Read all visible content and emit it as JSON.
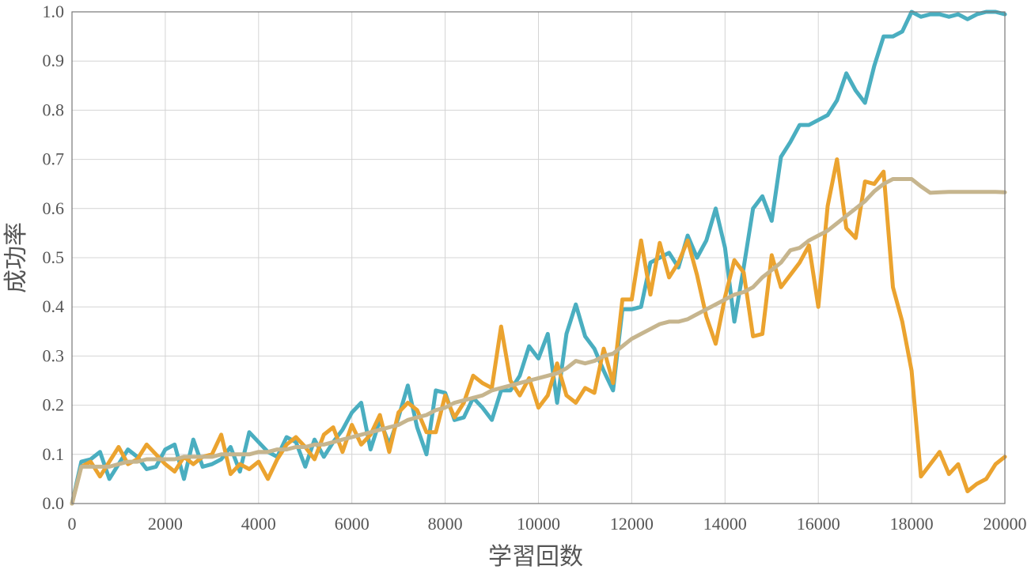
{
  "chart_data": {
    "type": "line",
    "xlabel": "学習回数",
    "ylabel": "成功率",
    "xlim": [
      0,
      20000
    ],
    "ylim": [
      0.0,
      1.0
    ],
    "grid": true,
    "x_ticks": [
      "0",
      "2000",
      "4000",
      "6000",
      "8000",
      "10000",
      "12000",
      "14000",
      "16000",
      "18000",
      "20000"
    ],
    "y_ticks": [
      "0.0",
      "0.1",
      "0.2",
      "0.3",
      "0.4",
      "0.5",
      "0.6",
      "0.7",
      "0.8",
      "0.9",
      "1.0"
    ],
    "x": [
      0,
      200,
      400,
      600,
      800,
      1000,
      1200,
      1400,
      1600,
      1800,
      2000,
      2200,
      2400,
      2600,
      2800,
      3000,
      3200,
      3400,
      3600,
      3800,
      4000,
      4200,
      4400,
      4600,
      4800,
      5000,
      5200,
      5400,
      5600,
      5800,
      6000,
      6200,
      6400,
      6600,
      6800,
      7000,
      7200,
      7400,
      7600,
      7800,
      8000,
      8200,
      8400,
      8600,
      8800,
      9000,
      9200,
      9400,
      9600,
      9800,
      10000,
      10200,
      10400,
      10600,
      10800,
      11000,
      11200,
      11400,
      11600,
      11800,
      12000,
      12200,
      12400,
      12600,
      12800,
      13000,
      13200,
      13400,
      13600,
      13800,
      14000,
      14200,
      14400,
      14600,
      14800,
      15000,
      15200,
      15400,
      15600,
      15800,
      16000,
      16200,
      16400,
      16600,
      16800,
      17000,
      17200,
      17400,
      17600,
      17800,
      18000,
      18200,
      18400,
      18600,
      18800,
      19000,
      19200,
      19400,
      19600,
      19800,
      20000
    ],
    "series": [
      {
        "color": "#4aaec0",
        "values": [
          0.0,
          0.085,
          0.09,
          0.105,
          0.05,
          0.08,
          0.11,
          0.095,
          0.07,
          0.075,
          0.11,
          0.12,
          0.05,
          0.13,
          0.075,
          0.08,
          0.09,
          0.115,
          0.065,
          0.145,
          0.125,
          0.105,
          0.095,
          0.135,
          0.125,
          0.075,
          0.13,
          0.095,
          0.125,
          0.15,
          0.185,
          0.205,
          0.11,
          0.17,
          0.12,
          0.175,
          0.24,
          0.155,
          0.1,
          0.23,
          0.225,
          0.17,
          0.175,
          0.215,
          0.195,
          0.17,
          0.23,
          0.23,
          0.26,
          0.32,
          0.295,
          0.345,
          0.205,
          0.345,
          0.405,
          0.34,
          0.315,
          0.27,
          0.23,
          0.395,
          0.395,
          0.4,
          0.49,
          0.5,
          0.51,
          0.48,
          0.545,
          0.5,
          0.535,
          0.6,
          0.52,
          0.37,
          0.48,
          0.6,
          0.625,
          0.575,
          0.705,
          0.735,
          0.77,
          0.77,
          0.78,
          0.79,
          0.82,
          0.875,
          0.84,
          0.815,
          0.89,
          0.95,
          0.95,
          0.96,
          1.0,
          0.99,
          0.995,
          0.995,
          0.99,
          0.995,
          0.985,
          0.995,
          1.0,
          1.0,
          0.995
        ]
      },
      {
        "color": "#eba32f",
        "values": [
          0.0,
          0.075,
          0.085,
          0.055,
          0.085,
          0.115,
          0.08,
          0.09,
          0.12,
          0.1,
          0.08,
          0.065,
          0.095,
          0.08,
          0.095,
          0.1,
          0.14,
          0.06,
          0.08,
          0.07,
          0.085,
          0.05,
          0.09,
          0.12,
          0.135,
          0.115,
          0.09,
          0.14,
          0.155,
          0.105,
          0.16,
          0.12,
          0.14,
          0.18,
          0.105,
          0.185,
          0.205,
          0.19,
          0.145,
          0.145,
          0.22,
          0.175,
          0.205,
          0.26,
          0.245,
          0.235,
          0.36,
          0.25,
          0.22,
          0.255,
          0.195,
          0.22,
          0.285,
          0.22,
          0.205,
          0.235,
          0.225,
          0.315,
          0.245,
          0.415,
          0.415,
          0.535,
          0.425,
          0.53,
          0.46,
          0.49,
          0.535,
          0.465,
          0.38,
          0.325,
          0.42,
          0.495,
          0.47,
          0.34,
          0.345,
          0.505,
          0.44,
          0.465,
          0.49,
          0.525,
          0.4,
          0.605,
          0.7,
          0.56,
          0.54,
          0.655,
          0.65,
          0.675,
          0.44,
          0.37,
          0.27,
          0.055,
          0.08,
          0.105,
          0.06,
          0.08,
          0.025,
          0.04,
          0.05,
          0.08,
          0.095
        ]
      },
      {
        "color": "#c6b58e",
        "values": [
          0.0,
          0.075,
          0.075,
          0.075,
          0.075,
          0.08,
          0.085,
          0.085,
          0.09,
          0.09,
          0.09,
          0.09,
          0.095,
          0.095,
          0.095,
          0.095,
          0.1,
          0.1,
          0.1,
          0.1,
          0.105,
          0.105,
          0.11,
          0.11,
          0.115,
          0.115,
          0.12,
          0.12,
          0.125,
          0.13,
          0.135,
          0.14,
          0.145,
          0.15,
          0.155,
          0.16,
          0.17,
          0.175,
          0.18,
          0.19,
          0.195,
          0.205,
          0.21,
          0.215,
          0.22,
          0.23,
          0.235,
          0.24,
          0.245,
          0.25,
          0.255,
          0.26,
          0.265,
          0.275,
          0.29,
          0.285,
          0.29,
          0.3,
          0.305,
          0.32,
          0.335,
          0.345,
          0.355,
          0.365,
          0.37,
          0.37,
          0.375,
          0.385,
          0.395,
          0.405,
          0.415,
          0.425,
          0.43,
          0.44,
          0.46,
          0.475,
          0.49,
          0.515,
          0.52,
          0.535,
          0.545,
          0.555,
          0.57,
          0.585,
          0.6,
          0.615,
          0.635,
          0.65,
          0.66,
          0.66,
          0.66,
          0.645,
          0.632,
          0.633,
          0.634,
          0.634,
          0.634,
          0.634,
          0.634,
          0.634,
          0.633
        ]
      }
    ]
  }
}
